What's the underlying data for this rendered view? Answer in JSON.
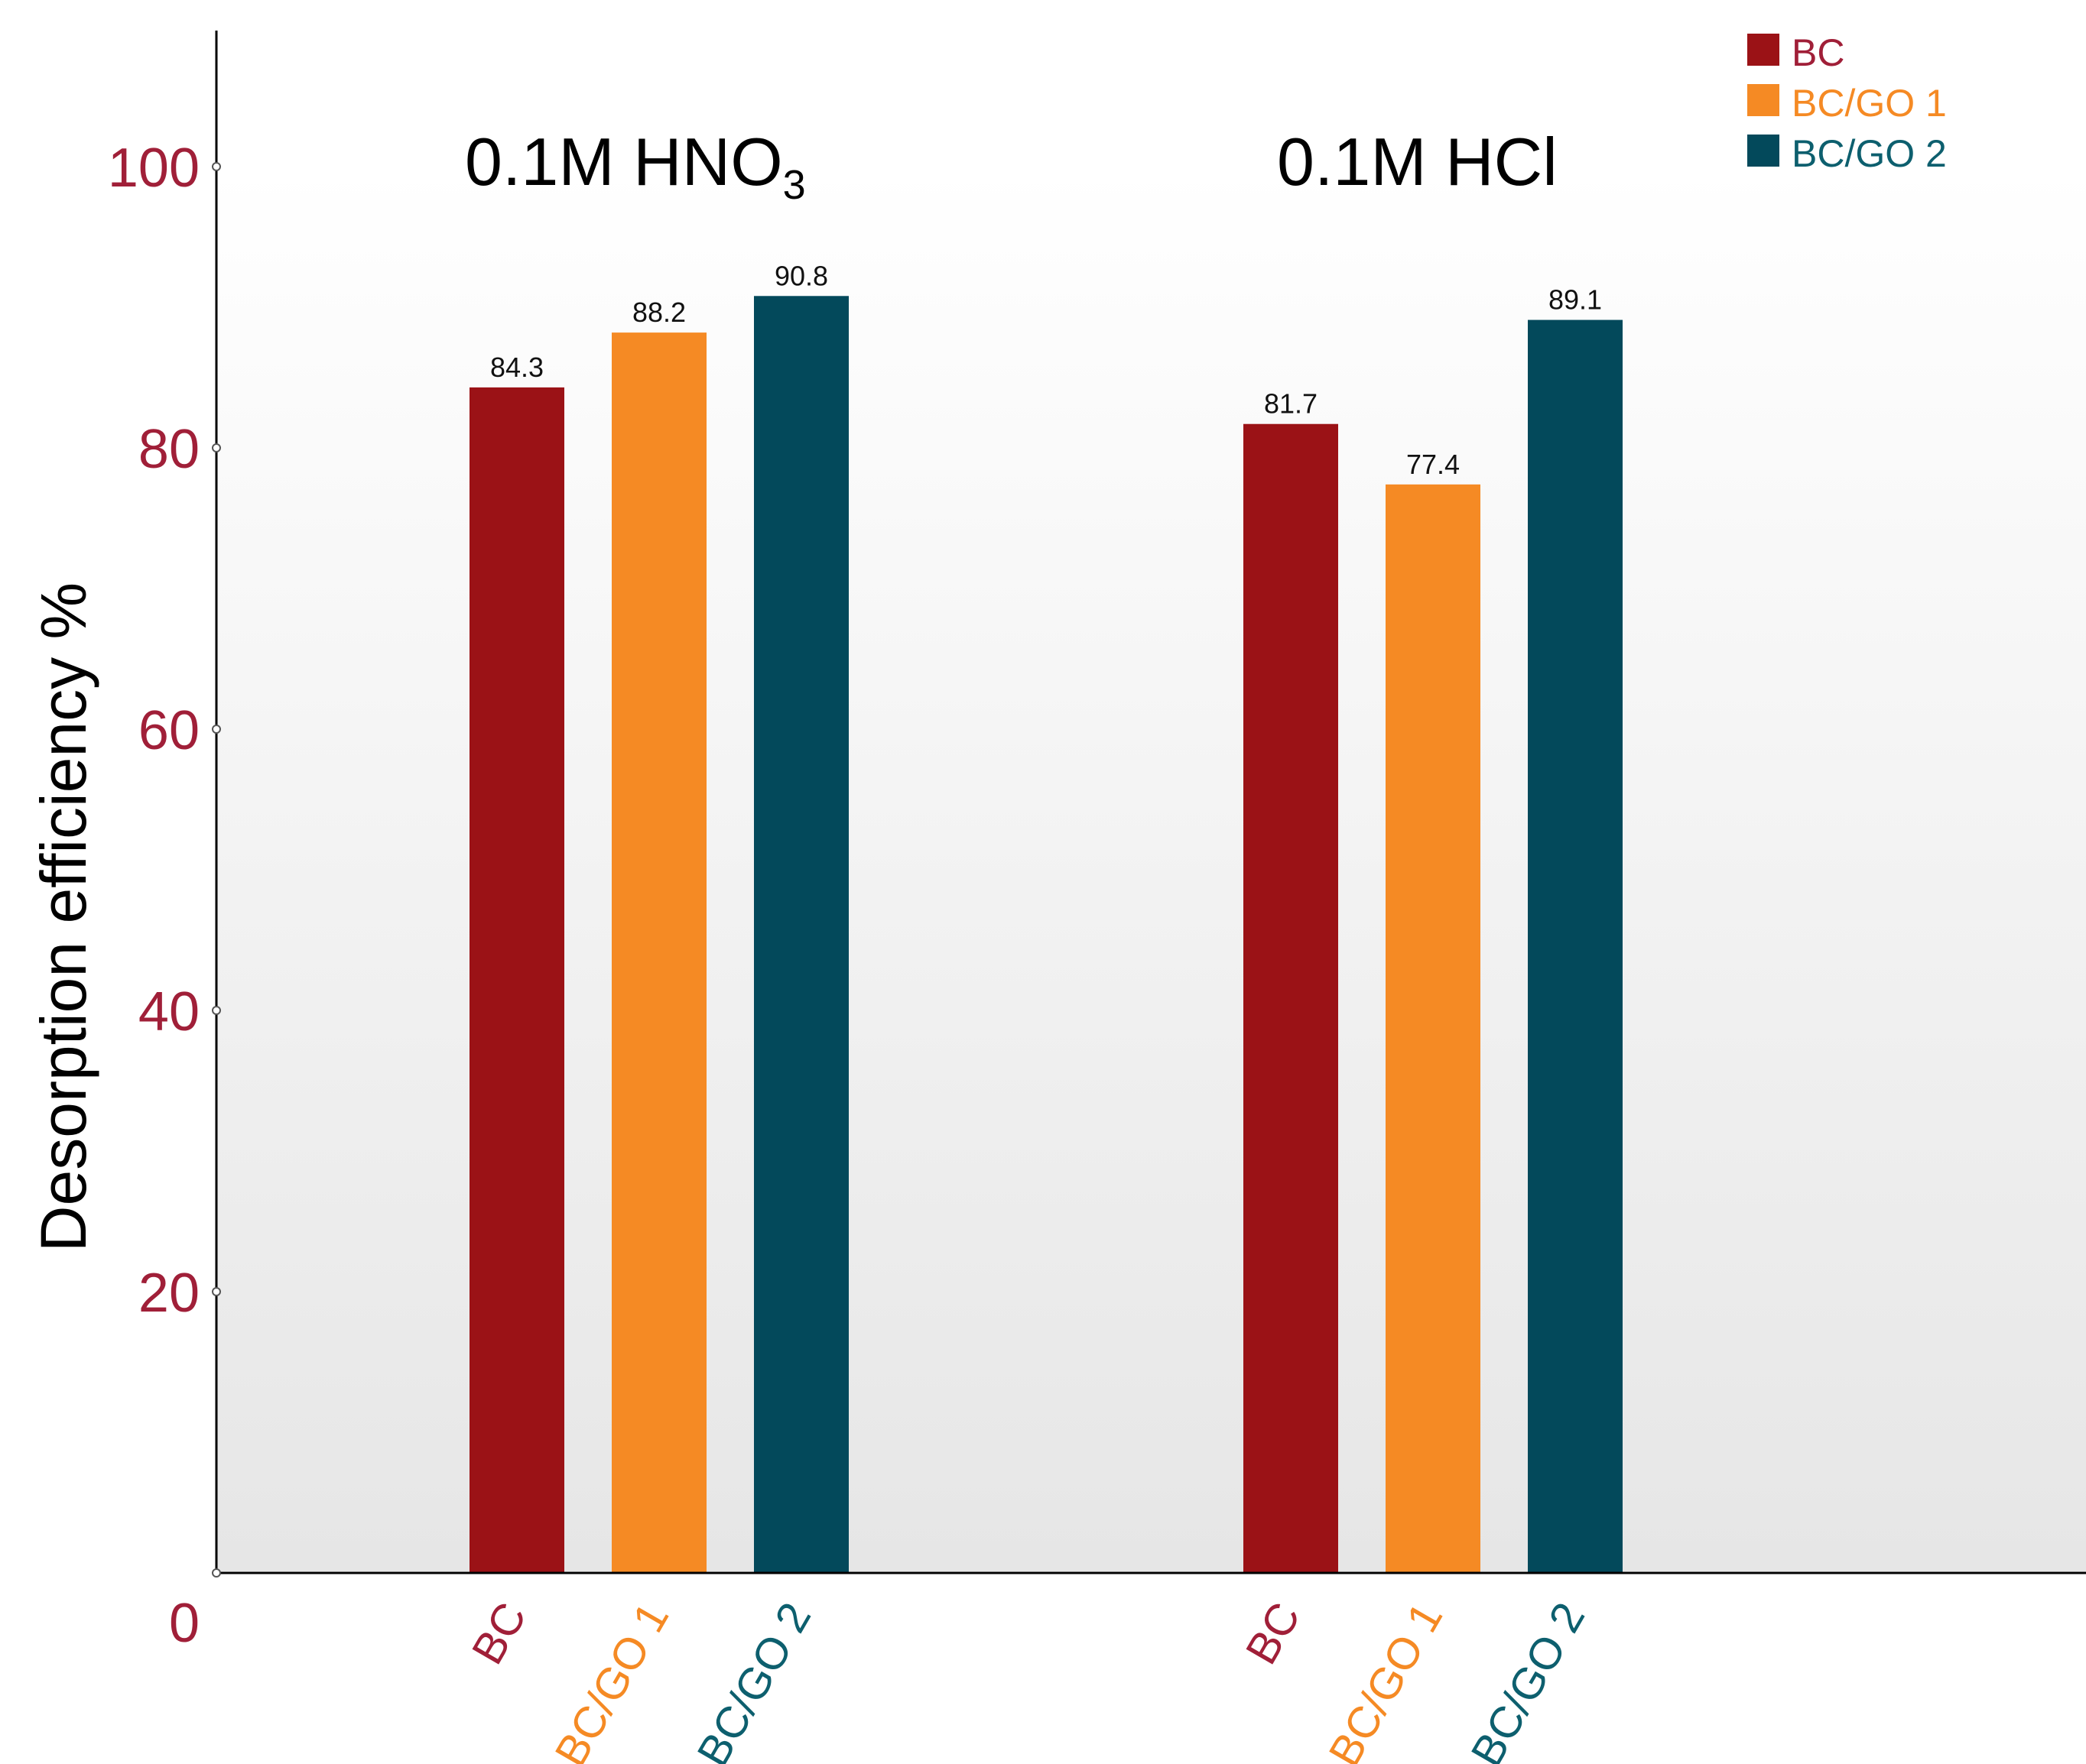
{
  "chart_data": {
    "type": "bar",
    "title": "",
    "ylabel": "Desorption efficiency %",
    "xlabel": "",
    "ylim": [
      0,
      110
    ],
    "yticks": [
      0,
      20,
      40,
      60,
      80,
      100
    ],
    "ytick_labels": [
      "0",
      "20",
      "40",
      "60",
      "80",
      "100"
    ],
    "groups": [
      {
        "title": "0.1M HNO",
        "subscript": "3",
        "categories": [
          "BC",
          "BC/GO 1",
          "BC/GO 2"
        ],
        "values": [
          84.3,
          88.2,
          90.8
        ],
        "value_labels": [
          "84.3",
          "88.2",
          "90.8"
        ]
      },
      {
        "title": "0.1M HCl",
        "subscript": "",
        "categories": [
          "BC",
          "BC/GO 1",
          "BC/GO 2"
        ],
        "values": [
          81.7,
          77.4,
          89.1
        ],
        "value_labels": [
          "81.7",
          "77.4",
          "89.1"
        ]
      }
    ],
    "series": [
      {
        "name": "BC",
        "color": "#9b1216"
      },
      {
        "name": "BC/GO 1",
        "color": "#f58a24"
      },
      {
        "name": "BC/GO 2",
        "color": "#03495b"
      }
    ],
    "legend": {
      "position": "top-right",
      "entries": [
        "BC",
        "BC/GO 1",
        "BC/GO 2"
      ]
    },
    "tick_color": "#a01f38",
    "label_colors": [
      "#a01f38",
      "#f58a24",
      "#0d5f6e"
    ]
  }
}
